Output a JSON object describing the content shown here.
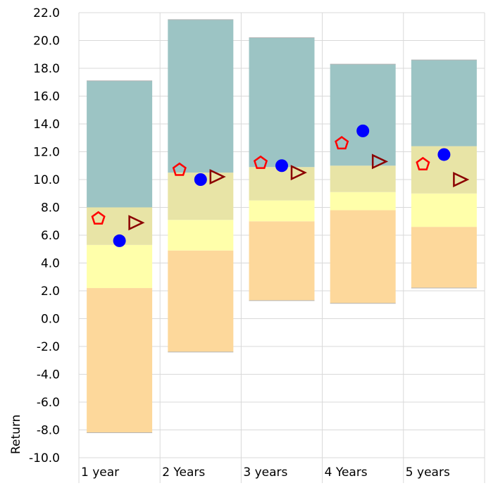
{
  "chart_data": {
    "type": "bar",
    "title": "",
    "xlabel": "",
    "ylabel": "Return",
    "ylim": [
      -10,
      22
    ],
    "y_tick_step": 2,
    "y_tick_labels": [
      "-10.0",
      "-8.0",
      "-6.0",
      "-4.0",
      "-2.0",
      "0.0",
      "2.0",
      "4.0",
      "6.0",
      "8.0",
      "10.0",
      "12.0",
      "14.0",
      "16.0",
      "18.0",
      "20.0",
      "22.0"
    ],
    "categories": [
      "1 year",
      "2 Years",
      "3 years",
      "4 Years",
      "5 years"
    ],
    "grid": true,
    "legend": "none",
    "range_bands": {
      "colors": [
        "#fdd89b",
        "#ffffaa",
        "#e8e4a6",
        "#9cc4c4"
      ],
      "boundaries": [
        [
          -8.2,
          2.2,
          5.3,
          8.0,
          17.1
        ],
        [
          -2.4,
          4.9,
          7.1,
          10.5,
          21.5
        ],
        [
          1.3,
          7.0,
          8.5,
          10.9,
          20.2
        ],
        [
          1.1,
          7.8,
          9.1,
          11.0,
          18.3
        ],
        [
          2.2,
          6.6,
          9.0,
          12.4,
          18.6
        ]
      ]
    },
    "series": [
      {
        "marker": "pentagon",
        "color": "#ff0000",
        "values": [
          7.2,
          10.7,
          11.2,
          12.6,
          11.1
        ]
      },
      {
        "marker": "circle",
        "color": "#0000ff",
        "values": [
          5.6,
          10.0,
          11.0,
          13.5,
          11.8
        ]
      },
      {
        "marker": "triangle-right",
        "color": "#8b0000",
        "values": [
          6.9,
          10.2,
          10.5,
          11.3,
          10.0
        ]
      }
    ]
  }
}
